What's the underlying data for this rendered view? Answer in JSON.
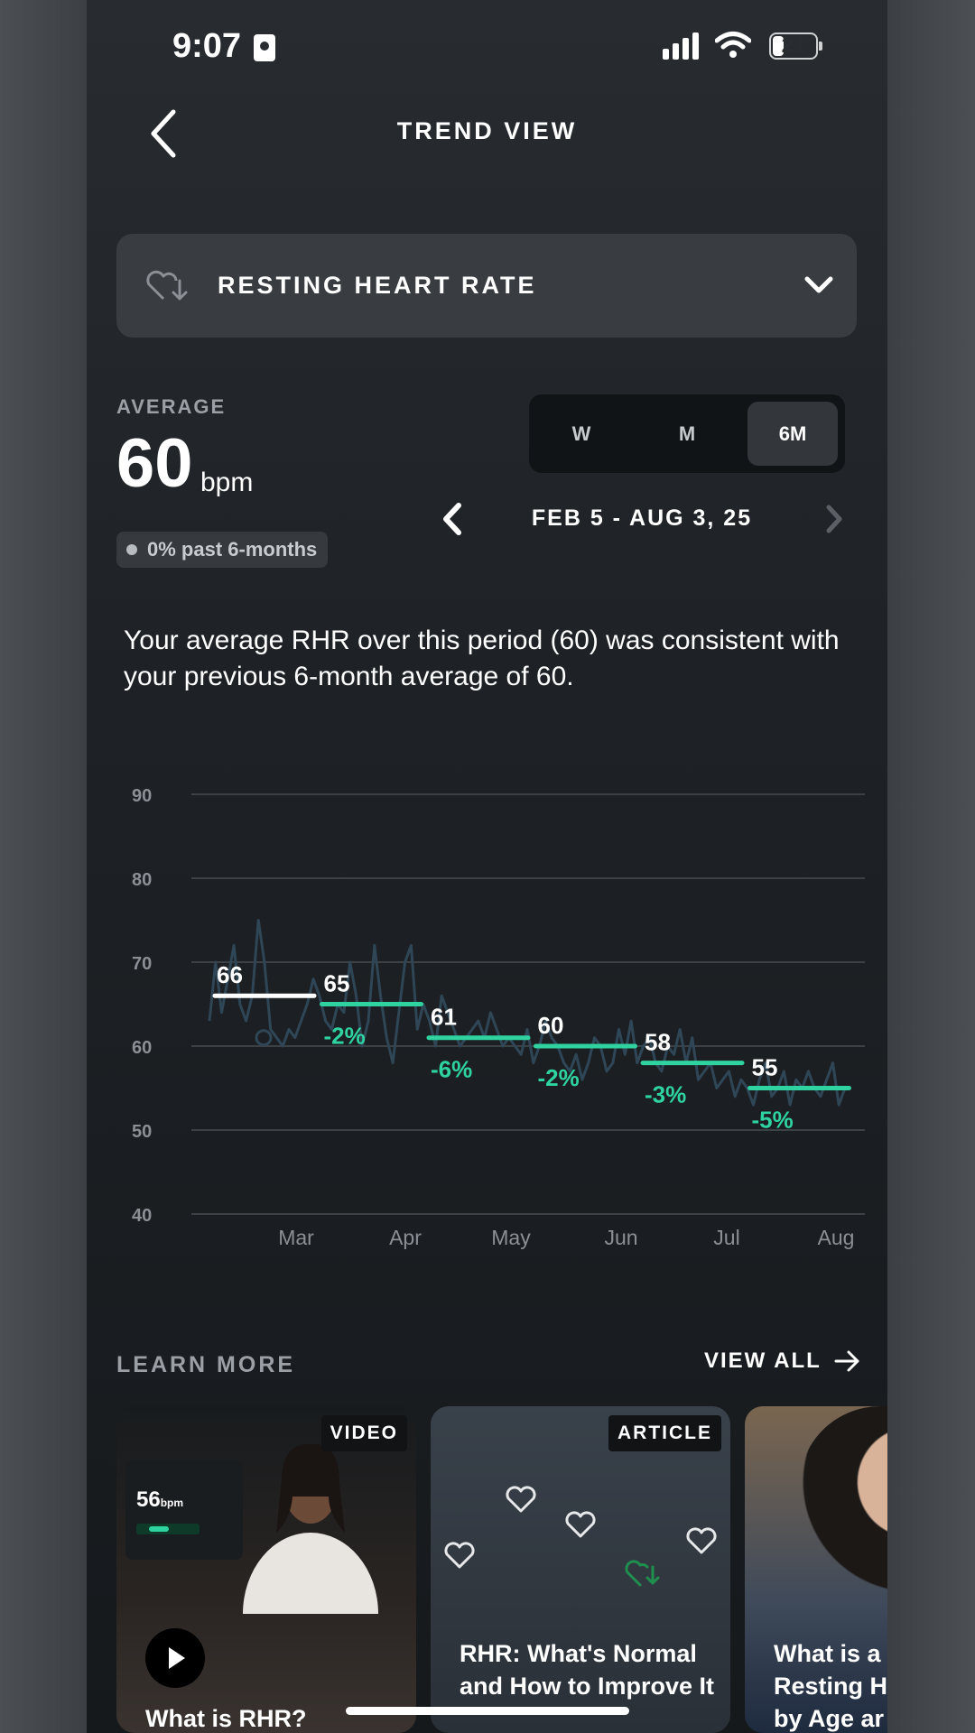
{
  "status_bar": {
    "time": "9:07",
    "battery": "21"
  },
  "header": {
    "title": "TREND VIEW"
  },
  "metric_selector": {
    "label": "RESTING HEART RATE",
    "icon": "heart-arrow-icon"
  },
  "average": {
    "label": "AVERAGE",
    "value": "60",
    "unit": "bpm",
    "change": "0% past 6-months"
  },
  "range_toggle": {
    "options": [
      "W",
      "M",
      "6M"
    ],
    "selected": "6M"
  },
  "date_nav": {
    "range": "FEB 5 - AUG 3, 25"
  },
  "summary": "Your average RHR over this period (60) was consistent with your previous 6-month average of 60.",
  "chart_data": {
    "type": "line",
    "ylim": [
      40,
      90
    ],
    "yticks": [
      90,
      80,
      70,
      60,
      50,
      40
    ],
    "x_ticks": [
      "Mar",
      "Apr",
      "May",
      "Jun",
      "Jul",
      "Aug"
    ],
    "monthly_averages": [
      {
        "value": 66,
        "label": "66",
        "change": ""
      },
      {
        "value": 65,
        "label": "65",
        "change": "-2%"
      },
      {
        "value": 61,
        "label": "61",
        "change": "-6%"
      },
      {
        "value": 60,
        "label": "60",
        "change": "-2%"
      },
      {
        "value": 58,
        "label": "58",
        "change": "-3%"
      },
      {
        "value": 55,
        "label": "55",
        "change": "-5%"
      }
    ],
    "daily_values": [
      63,
      70,
      64,
      68,
      72,
      65,
      63,
      66,
      75,
      70,
      62,
      61,
      60,
      62,
      61,
      63,
      65,
      68,
      66,
      63,
      62,
      65,
      64,
      70,
      66,
      60,
      63,
      72,
      66,
      61,
      58,
      64,
      70,
      72,
      62,
      65,
      63,
      60,
      66,
      64,
      62,
      60,
      61,
      62,
      63,
      61,
      64,
      62,
      60,
      61,
      60,
      59,
      62,
      58,
      60,
      63,
      61,
      60,
      58,
      57,
      59,
      56,
      58,
      61,
      60,
      57,
      58,
      62,
      59,
      63,
      58,
      60,
      61,
      58,
      57,
      60,
      59,
      62,
      58,
      61,
      56,
      57,
      58,
      55,
      56,
      57,
      54,
      56,
      55,
      53,
      56,
      58,
      54,
      55,
      57,
      53,
      56,
      55,
      57,
      55,
      54,
      56,
      58,
      53,
      55
    ],
    "colors": {
      "baseline": "#ffffff",
      "improve": "#2fd39f",
      "line": "#2f4656",
      "grid": "#3c4146"
    }
  },
  "learn_more": {
    "label": "LEARN MORE",
    "view_all": "VIEW ALL",
    "cards": [
      {
        "badge": "VIDEO",
        "title": "What is RHR?",
        "mini_value": "56",
        "mini_unit": "bpm"
      },
      {
        "badge": "ARTICLE",
        "title": "RHR: What's Normal and How to Improve It"
      },
      {
        "badge": "",
        "title": "What is a Resting H by Age ar"
      }
    ]
  }
}
